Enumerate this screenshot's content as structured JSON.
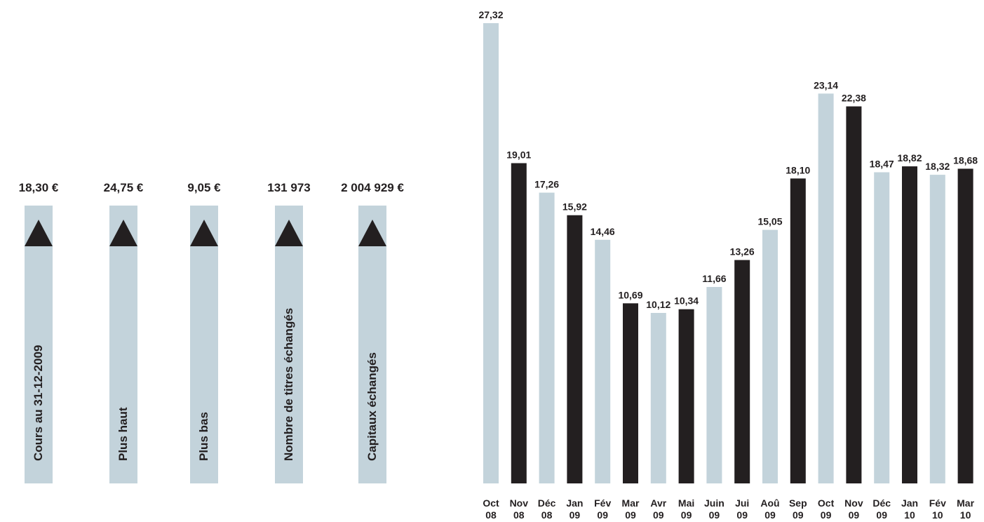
{
  "colors": {
    "light_bar": "#c3d3db",
    "dark_bar": "#231f20",
    "text": "#231f20"
  },
  "indicators": [
    {
      "value": "18,30 €",
      "label": "Cours au 31-12-2009"
    },
    {
      "value": "24,75 €",
      "label": "Plus haut"
    },
    {
      "value": "9,05 €",
      "label": "Plus bas"
    },
    {
      "value": "131 973",
      "label": "Nombre de titres échangés"
    },
    {
      "value": "2 004 929 €",
      "label": "Capitaux échangés"
    }
  ],
  "chart_data": {
    "type": "bar",
    "title": "",
    "xlabel": "",
    "ylabel": "",
    "ylim": [
      0,
      27.32
    ],
    "grid": false,
    "categories": [
      [
        "Oct",
        "08"
      ],
      [
        "Nov",
        "08"
      ],
      [
        "Déc",
        "08"
      ],
      [
        "Jan",
        "09"
      ],
      [
        "Fév",
        "09"
      ],
      [
        "Mar",
        "09"
      ],
      [
        "Avr",
        "09"
      ],
      [
        "Mai",
        "09"
      ],
      [
        "Juin",
        "09"
      ],
      [
        "Jui",
        "09"
      ],
      [
        "Aoû",
        "09"
      ],
      [
        "Sep",
        "09"
      ],
      [
        "Oct",
        "09"
      ],
      [
        "Nov",
        "09"
      ],
      [
        "Déc",
        "09"
      ],
      [
        "Jan",
        "10"
      ],
      [
        "Fév",
        "10"
      ],
      [
        "Mar",
        "10"
      ]
    ],
    "values": [
      27.32,
      19.01,
      17.26,
      15.92,
      14.46,
      10.69,
      10.12,
      10.34,
      11.66,
      13.26,
      15.05,
      18.1,
      23.14,
      22.38,
      18.47,
      18.82,
      18.32,
      18.68
    ],
    "value_labels": [
      "27,32",
      "19,01",
      "17,26",
      "15,92",
      "14,46",
      "10,69",
      "10,12",
      "10,34",
      "11,66",
      "13,26",
      "15,05",
      "18,10",
      "23,14",
      "22,38",
      "18,47",
      "18,82",
      "18,32",
      "18,68"
    ],
    "bar_colors": [
      "light",
      "dark",
      "light",
      "dark",
      "light",
      "dark",
      "light",
      "dark",
      "light",
      "dark",
      "light",
      "dark",
      "light",
      "dark",
      "light",
      "dark",
      "light",
      "dark"
    ]
  }
}
